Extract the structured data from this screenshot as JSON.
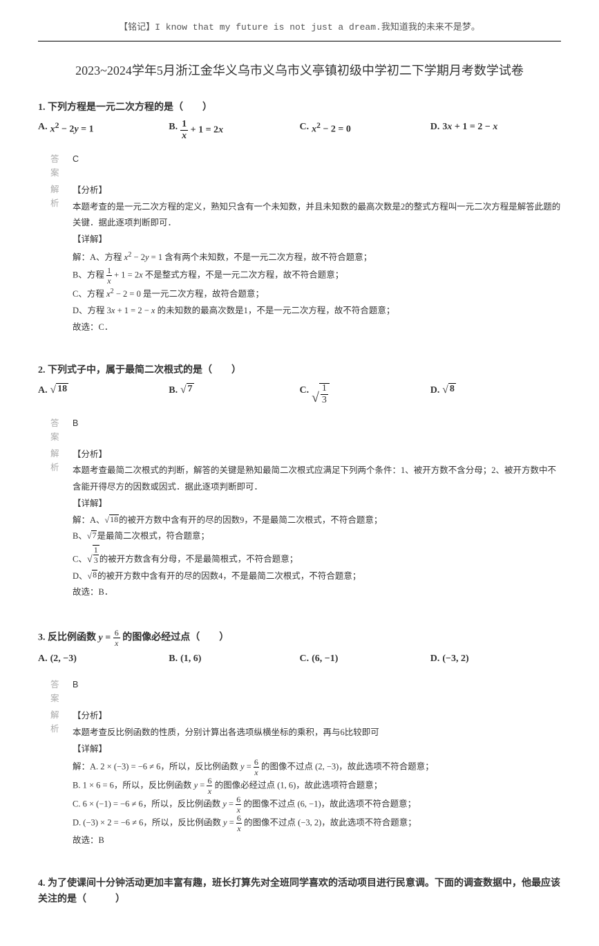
{
  "motto": "【铭记】I know that my future is not just a dream.我知道我的未来不是梦。",
  "title": "2023~2024学年5月浙江金华义乌市义乌市义亭镇初级中学初二下学期月考数学试卷",
  "q1": {
    "num": "1.",
    "stem_pre": "下列方程是一元二次方程的是（",
    "stem_post": "）",
    "optA_label": "A.",
    "optB_label": "B.",
    "optC_label": "C.",
    "optD_label": "D.",
    "ans_label": "答案",
    "ans": "C",
    "exp_label": "解析",
    "exp_l1": "【分析】",
    "exp_l2": "本题考查的是一元二次方程的定义，熟知只含有一个未知数，并且未知数的最高次数是2的整式方程叫一元二次方程是解答此题的关键．据此逐项判断即可．",
    "exp_l3": "【详解】",
    "exp_l4_pre": "解：A、方程 ",
    "exp_l4_post": " 含有两个未知数，不是一元二次方程，故不符合题意；",
    "exp_l5_pre": "B、方程 ",
    "exp_l5_post": " 不是整式方程，不是一元二次方程，故不符合题意；",
    "exp_l6_pre": "C、方程 ",
    "exp_l6_post": " 是一元二次方程，故符合题意；",
    "exp_l7_pre": "D、方程 ",
    "exp_l7_post": " 的未知数的最高次数是1，不是一元二次方程，故不符合题意；",
    "exp_l8": "故选：C．"
  },
  "q2": {
    "num": "2.",
    "stem_pre": "下列式子中，属于最简二次根式的是（",
    "stem_post": "）",
    "optA_label": "A.",
    "optB_label": "B.",
    "optC_label": "C.",
    "optD_label": "D.",
    "ans_label": "答案",
    "ans": "B",
    "exp_label": "解析",
    "exp_l1": "【分析】",
    "exp_l2": "本题考查最简二次根式的判断，解答的关键是熟知最简二次根式应满足下列两个条件：1、被开方数不含分母；2、被开方数中不含能开得尽方的因数或因式．据此逐项判断即可．",
    "exp_l3": "【详解】",
    "exp_l4_pre": "解：A、",
    "exp_l4_post": "的被开方数中含有开的尽的因数9，不是最简二次根式，不符合题意；",
    "exp_l5_pre": "B、",
    "exp_l5_post": "是最简二次根式，符合题意；",
    "exp_l6_pre": "C、",
    "exp_l6_post": "的被开方数含有分母，不是最简根式，不符合题意；",
    "exp_l7_pre": "D、",
    "exp_l7_post": "的被开方数中含有开的尽的因数4，不是最简二次根式，不符合题意；",
    "exp_l8": "故选：B．"
  },
  "q3": {
    "num": "3.",
    "stem_pre": "反比例函数",
    "stem_post": "的图像必经过点（",
    "stem_end": "）",
    "optA_label": "A.",
    "optA": "(2, −3)",
    "optB_label": "B.",
    "optB": "(1, 6)",
    "optC_label": "C.",
    "optC": "(6, −1)",
    "optD_label": "D.",
    "optD": "(−3, 2)",
    "ans_label": "答案",
    "ans": "B",
    "exp_label": "解析",
    "exp_l1": "【分析】",
    "exp_l2": "本题考查反比例函数的性质，分别计算出各选项纵横坐标的乘积，再与6比较即可",
    "exp_l3": "【详解】",
    "exp_l4_a": "解：A.  2 × (−3) = −6 ≠ 6，所以，反比例函数 ",
    "exp_l4_b": " 的图像不过点 (2, −3)，故此选项不符合题意；",
    "exp_l5_a": "B.  1 × 6 = 6，所以，反比例函数 ",
    "exp_l5_b": " 的图像必经过点 (1, 6)，故此选项符合题意；",
    "exp_l6_a": "C.  6 × (−1) = −6 ≠ 6，所以，反比例函数 ",
    "exp_l6_b": " 的图像不过点 (6, −1)，故此选项不符合题意；",
    "exp_l7_a": "D.  (−3) × 2 = −6 ≠ 6，所以，反比例函数 ",
    "exp_l7_b": " 的图像不过点 (−3, 2)，故此选项不符合题意；",
    "exp_l8": "故选：B"
  },
  "q4": {
    "num": "4.",
    "stem": "为了使课间十分钟活动更加丰富有趣，班长打算先对全班同学喜欢的活动项目进行民意调。下面的调查数据中，他最应该关注的是（　　　）"
  }
}
